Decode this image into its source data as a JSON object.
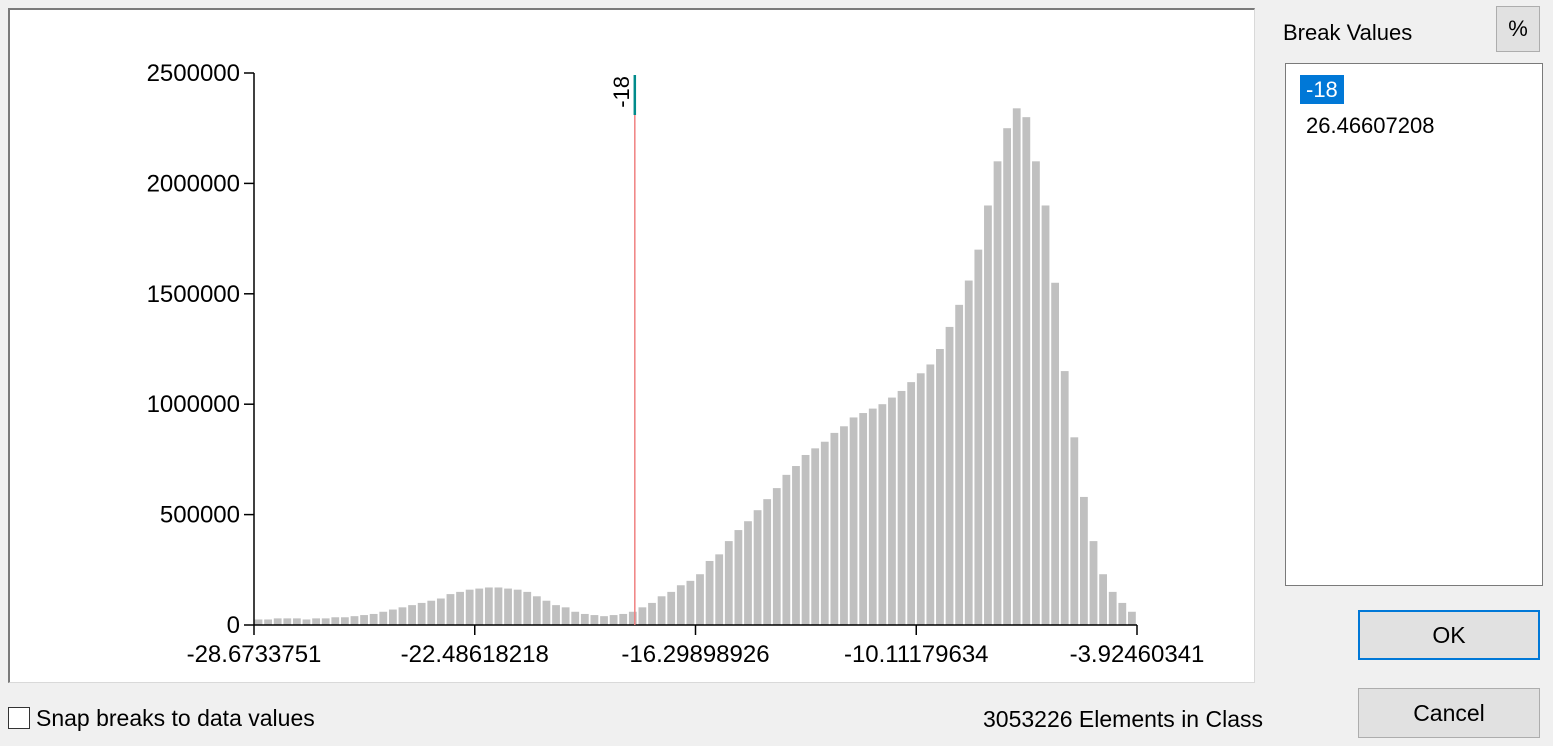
{
  "chart_data": {
    "type": "bar",
    "title": "",
    "xlabel": "",
    "ylabel": "",
    "xlim": [
      -28.6733751,
      -3.92460341
    ],
    "ylim": [
      0,
      2500000
    ],
    "x_ticks": [
      "-28.6733751",
      "-22.48618218",
      "-16.29898926",
      "-10.11179634",
      "-3.92460341"
    ],
    "y_ticks": [
      "0",
      "500000",
      "1000000",
      "1500000",
      "2000000",
      "2500000"
    ],
    "values": [
      25000,
      25000,
      30000,
      30000,
      30000,
      25000,
      30000,
      30000,
      35000,
      35000,
      40000,
      45000,
      50000,
      60000,
      70000,
      80000,
      90000,
      100000,
      110000,
      120000,
      140000,
      150000,
      160000,
      165000,
      170000,
      170000,
      165000,
      160000,
      150000,
      130000,
      110000,
      90000,
      80000,
      60000,
      50000,
      45000,
      40000,
      45000,
      50000,
      60000,
      80000,
      100000,
      130000,
      150000,
      180000,
      200000,
      230000,
      290000,
      320000,
      380000,
      430000,
      470000,
      520000,
      570000,
      620000,
      680000,
      720000,
      770000,
      800000,
      830000,
      870000,
      900000,
      940000,
      960000,
      980000,
      1000000,
      1030000,
      1060000,
      1100000,
      1140000,
      1180000,
      1250000,
      1350000,
      1450000,
      1560000,
      1700000,
      1900000,
      2100000,
      2250000,
      2340000,
      2300000,
      2100000,
      1900000,
      1550000,
      1150000,
      850000,
      580000,
      380000,
      230000,
      150000,
      100000,
      60000
    ],
    "break_line": {
      "value": -18,
      "label": "-18"
    }
  },
  "colors": {
    "bar": "#c0c0c0",
    "break_line": "#f08080",
    "break_marker": "#008b8b"
  },
  "snap_label": "Snap breaks to data values",
  "elements_label": "3053226 Elements in Class",
  "break_values_header": "Break Values",
  "percent_button": "%",
  "break_values": [
    "-18",
    "26.46607208"
  ],
  "ok_label": "OK",
  "cancel_label": "Cancel"
}
